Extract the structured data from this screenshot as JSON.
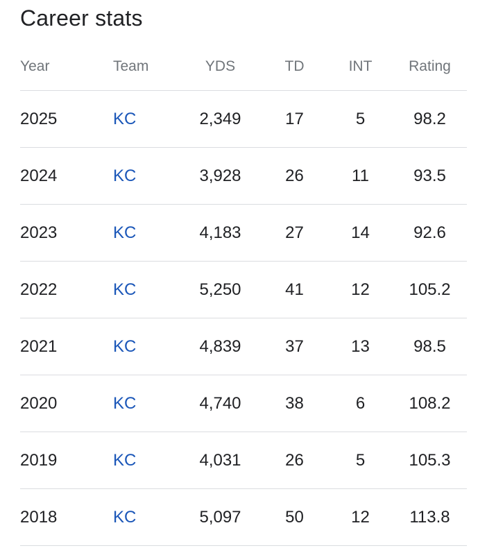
{
  "header": {
    "title": "Career stats"
  },
  "table": {
    "columns": [
      "Year",
      "Team",
      "YDS",
      "TD",
      "INT",
      "Rating"
    ],
    "rows": [
      {
        "year": "2025",
        "team": "KC",
        "yds": "2,349",
        "td": "17",
        "int": "5",
        "rating": "98.2"
      },
      {
        "year": "2024",
        "team": "KC",
        "yds": "3,928",
        "td": "26",
        "int": "11",
        "rating": "93.5"
      },
      {
        "year": "2023",
        "team": "KC",
        "yds": "4,183",
        "td": "27",
        "int": "14",
        "rating": "92.6"
      },
      {
        "year": "2022",
        "team": "KC",
        "yds": "5,250",
        "td": "41",
        "int": "12",
        "rating": "105.2"
      },
      {
        "year": "2021",
        "team": "KC",
        "yds": "4,839",
        "td": "37",
        "int": "13",
        "rating": "98.5"
      },
      {
        "year": "2020",
        "team": "KC",
        "yds": "4,740",
        "td": "38",
        "int": "6",
        "rating": "108.2"
      },
      {
        "year": "2019",
        "team": "KC",
        "yds": "4,031",
        "td": "26",
        "int": "5",
        "rating": "105.3"
      },
      {
        "year": "2018",
        "team": "KC",
        "yds": "5,097",
        "td": "50",
        "int": "12",
        "rating": "113.8"
      }
    ]
  },
  "colors": {
    "text": "#202124",
    "header_text": "#70757a",
    "link": "#1a56b8",
    "divider": "#dadce0"
  }
}
